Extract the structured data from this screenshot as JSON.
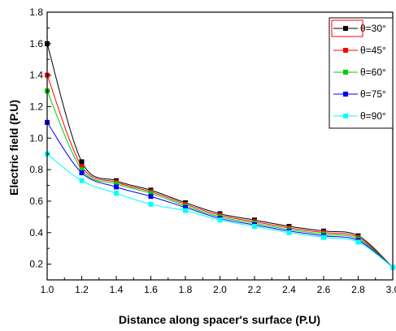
{
  "chart_data": {
    "type": "line",
    "xlabel": "Distance along spacer's surface (P.U)",
    "ylabel": "Electric field (P.U)",
    "xlim": [
      1.0,
      3.0
    ],
    "ylim": [
      0.1,
      1.8
    ],
    "x_ticks": [
      "1.0",
      "1.2",
      "1.4",
      "1.6",
      "1.8",
      "2.0",
      "2.2",
      "2.4",
      "2.6",
      "2.8",
      "3.0"
    ],
    "y_ticks": [
      "0.2",
      "0.4",
      "0.6",
      "0.8",
      "1.0",
      "1.2",
      "1.4",
      "1.6",
      "1.8"
    ],
    "grid": false,
    "legend_position": "top-right",
    "x": [
      1.0,
      1.2,
      1.4,
      1.6,
      1.8,
      2.0,
      2.2,
      2.4,
      2.6,
      2.8,
      3.0
    ],
    "series": [
      {
        "name": "θ=30°",
        "color": "#000000",
        "values": [
          1.6,
          0.85,
          0.73,
          0.67,
          0.59,
          0.52,
          0.48,
          0.44,
          0.41,
          0.38,
          0.18
        ]
      },
      {
        "name": "θ=45°",
        "color": "#ff0000",
        "values": [
          1.4,
          0.82,
          0.72,
          0.66,
          0.58,
          0.51,
          0.47,
          0.43,
          0.4,
          0.37,
          0.18
        ]
      },
      {
        "name": "θ=60°",
        "color": "#00cc00",
        "values": [
          1.3,
          0.8,
          0.71,
          0.65,
          0.57,
          0.5,
          0.46,
          0.42,
          0.39,
          0.36,
          0.18
        ]
      },
      {
        "name": "θ=75°",
        "color": "#0000ff",
        "values": [
          1.1,
          0.78,
          0.69,
          0.63,
          0.56,
          0.49,
          0.45,
          0.41,
          0.38,
          0.35,
          0.18
        ]
      },
      {
        "name": "θ=90°",
        "color": "#00ffff",
        "values": [
          0.9,
          0.73,
          0.65,
          0.58,
          0.54,
          0.48,
          0.44,
          0.4,
          0.37,
          0.34,
          0.18
        ]
      }
    ]
  }
}
